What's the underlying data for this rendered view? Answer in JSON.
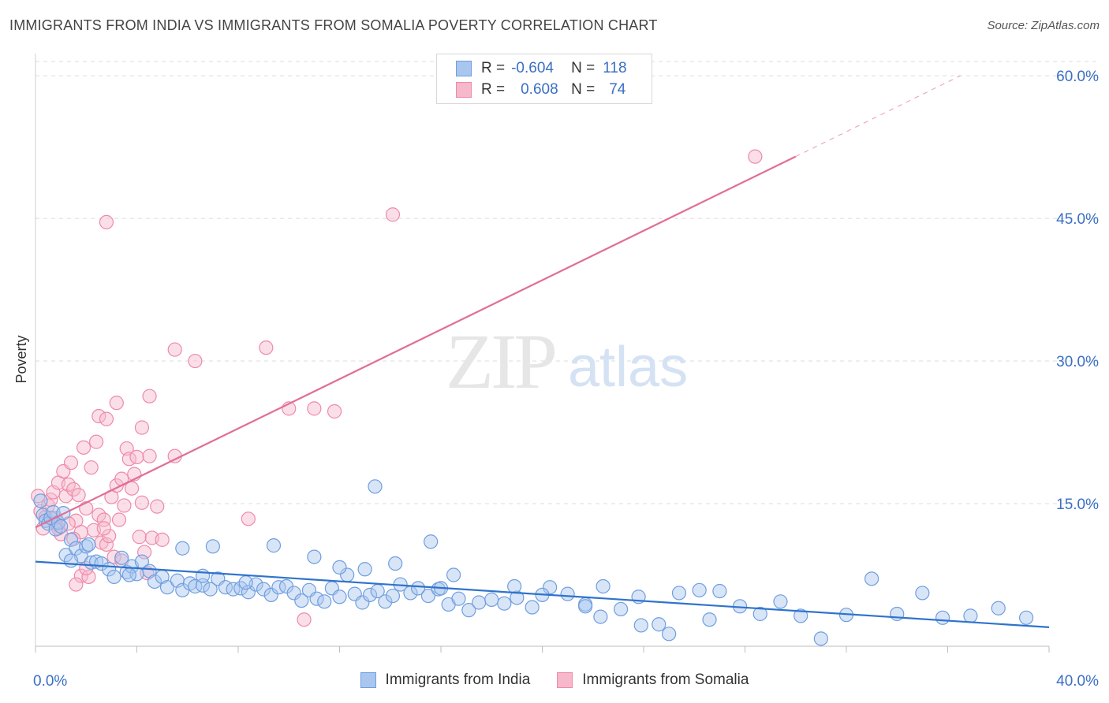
{
  "title": "IMMIGRANTS FROM INDIA VS IMMIGRANTS FROM SOMALIA POVERTY CORRELATION CHART",
  "source": "Source: ZipAtlas.com",
  "watermark": {
    "zip": "ZIP",
    "atlas": "atlas"
  },
  "colors": {
    "india_fill": "#a9c6ee",
    "india_stroke": "#6f9ee0",
    "india_line": "#2f73cc",
    "somalia_fill": "#f6b8cb",
    "somalia_stroke": "#ee8aaa",
    "somalia_line": "#e06f97",
    "grid": "#dcdcdc",
    "tick_label": "#3a6fc4"
  },
  "legend": {
    "rows": [
      {
        "r_label": "R =",
        "r_value": "-0.604",
        "n_label": "N =",
        "n_value": "118"
      },
      {
        "r_label": "R =",
        "r_value": "0.608",
        "n_label": "N =",
        "n_value": "74"
      }
    ]
  },
  "chart_data": {
    "type": "scatter",
    "xlabel": "",
    "ylabel": "Poverty",
    "xlim": [
      0,
      40
    ],
    "ylim": [
      0,
      61.5
    ],
    "x_tick_labels": [
      "0.0%",
      "40.0%"
    ],
    "y_ticks": [
      15,
      30,
      45,
      60
    ],
    "y_tick_labels": [
      "15.0%",
      "30.0%",
      "45.0%",
      "60.0%"
    ],
    "series": [
      {
        "name": "Immigrants from India",
        "trend": {
          "x": [
            0,
            40
          ],
          "y": [
            8.9,
            2.0
          ],
          "dashed_to": null
        },
        "points": [
          [
            0.2,
            15.3
          ],
          [
            0.3,
            13.8
          ],
          [
            0.4,
            13.2
          ],
          [
            0.5,
            12.9
          ],
          [
            0.6,
            13.5
          ],
          [
            0.7,
            14.1
          ],
          [
            0.8,
            12.3
          ],
          [
            0.9,
            13.0
          ],
          [
            1.0,
            12.6
          ],
          [
            1.1,
            14.0
          ],
          [
            1.2,
            9.6
          ],
          [
            1.4,
            11.2
          ],
          [
            1.6,
            10.3
          ],
          [
            1.8,
            9.5
          ],
          [
            2.0,
            10.5
          ],
          [
            2.2,
            8.8
          ],
          [
            2.4,
            8.9
          ],
          [
            2.6,
            8.7
          ],
          [
            2.9,
            8.1
          ],
          [
            3.1,
            7.3
          ],
          [
            3.4,
            9.3
          ],
          [
            3.6,
            7.8
          ],
          [
            3.8,
            8.4
          ],
          [
            4.0,
            7.6
          ],
          [
            4.2,
            8.9
          ],
          [
            4.5,
            7.9
          ],
          [
            4.7,
            6.8
          ],
          [
            5.0,
            7.3
          ],
          [
            5.2,
            6.2
          ],
          [
            5.6,
            6.9
          ],
          [
            5.8,
            5.9
          ],
          [
            6.1,
            6.6
          ],
          [
            6.3,
            6.3
          ],
          [
            6.6,
            6.4
          ],
          [
            6.9,
            6.0
          ],
          [
            7.2,
            7.1
          ],
          [
            7.5,
            6.2
          ],
          [
            7.8,
            6.0
          ],
          [
            8.1,
            6.1
          ],
          [
            8.4,
            5.7
          ],
          [
            8.7,
            6.5
          ],
          [
            9.0,
            6.0
          ],
          [
            9.3,
            5.4
          ],
          [
            9.6,
            6.2
          ],
          [
            9.9,
            6.3
          ],
          [
            10.2,
            5.6
          ],
          [
            10.5,
            4.8
          ],
          [
            10.8,
            5.9
          ],
          [
            11.1,
            5.0
          ],
          [
            11.4,
            4.7
          ],
          [
            11.7,
            6.1
          ],
          [
            12.0,
            5.2
          ],
          [
            12.3,
            7.5
          ],
          [
            12.6,
            5.5
          ],
          [
            12.9,
            4.6
          ],
          [
            13.2,
            5.4
          ],
          [
            13.5,
            5.8
          ],
          [
            13.8,
            4.7
          ],
          [
            14.1,
            5.3
          ],
          [
            14.4,
            6.5
          ],
          [
            14.8,
            5.6
          ],
          [
            15.1,
            6.1
          ],
          [
            15.5,
            5.3
          ],
          [
            15.9,
            6.0
          ],
          [
            16.3,
            4.4
          ],
          [
            16.7,
            5.0
          ],
          [
            17.1,
            3.8
          ],
          [
            17.5,
            4.6
          ],
          [
            18.0,
            4.9
          ],
          [
            18.5,
            4.5
          ],
          [
            19.0,
            5.1
          ],
          [
            19.6,
            4.1
          ],
          [
            20.3,
            6.2
          ],
          [
            21.0,
            5.5
          ],
          [
            21.7,
            4.4
          ],
          [
            22.4,
            6.3
          ],
          [
            23.1,
            3.9
          ],
          [
            23.8,
            5.2
          ],
          [
            24.6,
            2.3
          ],
          [
            25.4,
            5.6
          ],
          [
            26.2,
            5.9
          ],
          [
            27.0,
            5.8
          ],
          [
            27.8,
            4.2
          ],
          [
            28.6,
            3.4
          ],
          [
            29.4,
            4.7
          ],
          [
            30.2,
            3.2
          ],
          [
            31.0,
            0.8
          ],
          [
            32.0,
            3.3
          ],
          [
            33.0,
            7.1
          ],
          [
            34.0,
            3.4
          ],
          [
            35.0,
            5.6
          ],
          [
            35.8,
            3.0
          ],
          [
            36.9,
            3.2
          ],
          [
            38.0,
            4.0
          ],
          [
            39.1,
            3.0
          ],
          [
            13.4,
            16.8
          ],
          [
            15.6,
            11.0
          ],
          [
            7.0,
            10.5
          ],
          [
            9.4,
            10.6
          ],
          [
            11.0,
            9.4
          ],
          [
            5.8,
            10.3
          ],
          [
            3.7,
            7.5
          ],
          [
            1.4,
            9.0
          ],
          [
            2.1,
            10.7
          ],
          [
            6.6,
            7.4
          ],
          [
            8.3,
            6.7
          ],
          [
            12.0,
            8.3
          ],
          [
            14.2,
            8.7
          ],
          [
            16.5,
            7.5
          ],
          [
            18.9,
            6.3
          ],
          [
            20.0,
            5.4
          ],
          [
            21.7,
            4.2
          ],
          [
            22.3,
            3.1
          ],
          [
            23.9,
            2.2
          ],
          [
            25.0,
            1.3
          ],
          [
            26.6,
            2.8
          ],
          [
            13.0,
            8.1
          ],
          [
            16.0,
            6.1
          ]
        ]
      },
      {
        "name": "Immigrants from Somalia",
        "trend": {
          "x": [
            0,
            30
          ],
          "y": [
            12.5,
            51.5
          ],
          "dashed_to": [
            36.5,
            60.0
          ]
        },
        "points": [
          [
            0.1,
            15.8
          ],
          [
            0.2,
            14.2
          ],
          [
            0.3,
            12.4
          ],
          [
            0.4,
            13.6
          ],
          [
            0.5,
            14.8
          ],
          [
            0.6,
            15.4
          ],
          [
            0.7,
            16.2
          ],
          [
            0.8,
            12.9
          ],
          [
            0.9,
            17.2
          ],
          [
            1.0,
            11.8
          ],
          [
            1.1,
            18.4
          ],
          [
            1.2,
            15.8
          ],
          [
            1.3,
            17.0
          ],
          [
            1.4,
            19.3
          ],
          [
            1.5,
            16.5
          ],
          [
            1.6,
            13.2
          ],
          [
            1.7,
            15.9
          ],
          [
            1.8,
            12.0
          ],
          [
            1.9,
            20.9
          ],
          [
            2.0,
            14.5
          ],
          [
            2.2,
            18.8
          ],
          [
            2.3,
            12.2
          ],
          [
            2.4,
            21.5
          ],
          [
            2.5,
            13.8
          ],
          [
            2.6,
            10.9
          ],
          [
            2.7,
            13.3
          ],
          [
            2.8,
            10.7
          ],
          [
            2.9,
            11.6
          ],
          [
            3.0,
            15.7
          ],
          [
            3.1,
            9.4
          ],
          [
            3.2,
            16.9
          ],
          [
            3.3,
            13.3
          ],
          [
            3.4,
            17.6
          ],
          [
            3.5,
            14.8
          ],
          [
            3.6,
            20.8
          ],
          [
            3.7,
            19.7
          ],
          [
            3.8,
            16.6
          ],
          [
            3.9,
            18.1
          ],
          [
            4.0,
            19.9
          ],
          [
            4.1,
            11.5
          ],
          [
            4.2,
            15.1
          ],
          [
            4.3,
            9.9
          ],
          [
            4.4,
            7.7
          ],
          [
            4.5,
            20.0
          ],
          [
            4.6,
            11.4
          ],
          [
            4.8,
            14.7
          ],
          [
            5.0,
            11.2
          ],
          [
            5.5,
            20.0
          ],
          [
            4.2,
            23.0
          ],
          [
            4.5,
            26.3
          ],
          [
            3.2,
            25.6
          ],
          [
            2.5,
            24.2
          ],
          [
            2.8,
            23.9
          ],
          [
            5.5,
            31.2
          ],
          [
            6.3,
            30.0
          ],
          [
            9.1,
            31.4
          ],
          [
            10.0,
            25.0
          ],
          [
            11.0,
            25.0
          ],
          [
            11.8,
            24.7
          ],
          [
            14.1,
            45.4
          ],
          [
            2.8,
            44.6
          ],
          [
            28.4,
            51.5
          ],
          [
            8.4,
            13.4
          ],
          [
            10.6,
            2.8
          ],
          [
            1.8,
            7.4
          ],
          [
            2.1,
            7.3
          ],
          [
            1.6,
            6.5
          ],
          [
            2.7,
            12.4
          ],
          [
            3.4,
            9.0
          ],
          [
            0.8,
            13.5
          ],
          [
            0.9,
            12.4
          ],
          [
            1.3,
            12.9
          ],
          [
            1.5,
            11.3
          ],
          [
            2.0,
            8.2
          ]
        ]
      }
    ]
  }
}
